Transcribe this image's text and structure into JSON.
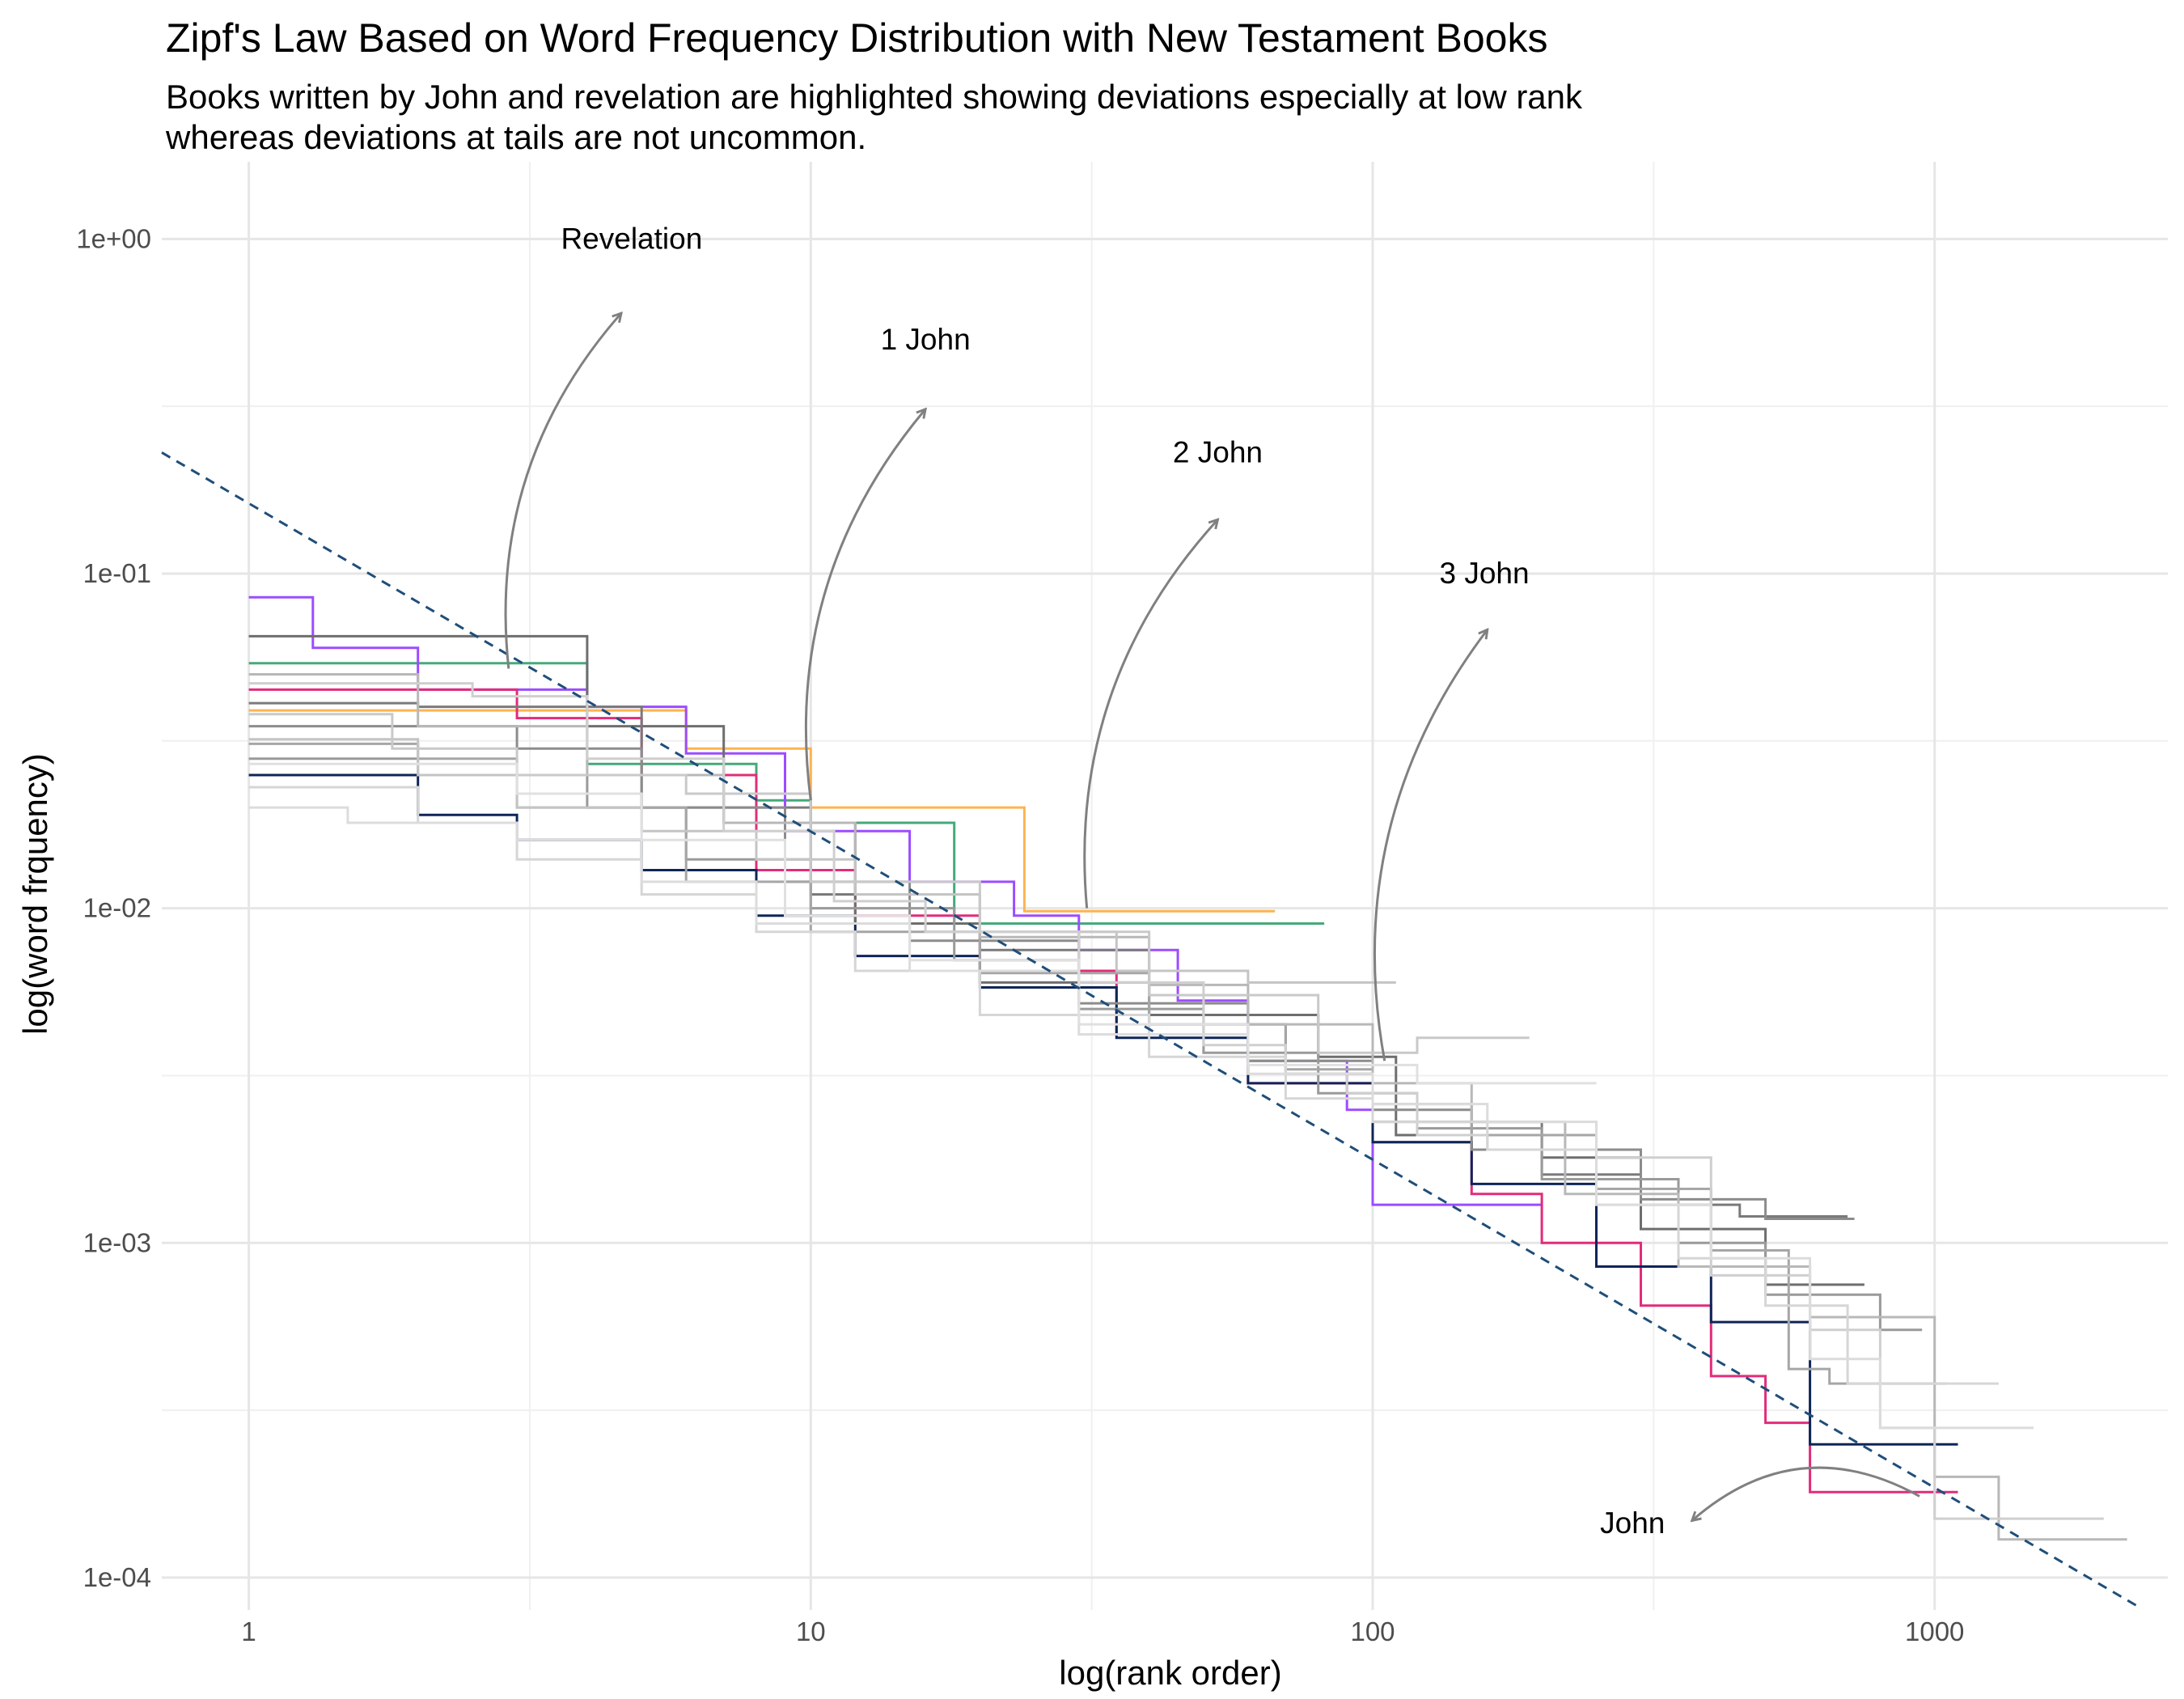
{
  "title": "Zipf's Law Based on Word Frequency Distribution with New Testament Books",
  "subtitle_lines": [
    "Books written by John and revelation are highlighted showing deviations especially at low rank",
    "whereas deviations at tails are not uncommon."
  ],
  "chart_data": {
    "type": "line",
    "title": "Zipf's Law Based on Word Frequency Distribution with New Testament Books",
    "xlabel": "log(rank order)",
    "ylabel": "log(word frquency)",
    "x_scale": "log10",
    "y_scale": "log10",
    "xlim": [
      0.7,
      2600
    ],
    "ylim": [
      8e-05,
      1.7
    ],
    "x_ticks": [
      1,
      10,
      100,
      1000
    ],
    "x_tick_labels": [
      "1",
      "10",
      "100",
      "1000"
    ],
    "y_ticks": [
      0.0001,
      0.001,
      0.01,
      0.1,
      1
    ],
    "y_tick_labels": [
      "1e-04",
      "1e-03",
      "1e-02",
      "1e-01",
      "1e+00"
    ],
    "grid": true,
    "legend": "none",
    "reference_line": {
      "style": "dashed",
      "color": "#1f4e79",
      "points": [
        [
          0.7,
          0.23
        ],
        [
          2300,
          8.2e-05
        ]
      ]
    },
    "series": [
      {
        "color": "#fdb44f",
        "values": [
          [
            1,
            0.039
          ],
          [
            5.5,
            0.039
          ],
          [
            6,
            0.03
          ],
          [
            9.5,
            0.03
          ],
          [
            10,
            0.02
          ],
          [
            23,
            0.02
          ],
          [
            24,
            0.0098
          ],
          [
            67,
            0.0098
          ]
        ]
      },
      {
        "color": "#46a97a",
        "values": [
          [
            1,
            0.054
          ],
          [
            3,
            0.054
          ],
          [
            4,
            0.027
          ],
          [
            7,
            0.027
          ],
          [
            8,
            0.021
          ],
          [
            10,
            0.018
          ],
          [
            17,
            0.018
          ],
          [
            18,
            0.009
          ],
          [
            82,
            0.009
          ]
        ]
      },
      {
        "color": "#9b4dff",
        "values": [
          [
            1,
            0.085
          ],
          [
            1.3,
            0.06
          ],
          [
            2,
            0.045
          ],
          [
            4,
            0.04
          ],
          [
            6,
            0.029
          ],
          [
            9,
            0.017
          ],
          [
            15,
            0.012
          ],
          [
            23,
            0.0095
          ],
          [
            30,
            0.0075
          ],
          [
            45,
            0.0053
          ],
          [
            60,
            0.0035
          ],
          [
            90,
            0.0025
          ],
          [
            100,
            0.0013
          ],
          [
            200,
            0.0013
          ]
        ]
      },
      {
        "color": "#e22c7a",
        "values": [
          [
            1,
            0.045
          ],
          [
            3,
            0.037
          ],
          [
            5,
            0.025
          ],
          [
            8,
            0.013
          ],
          [
            12,
            0.0095
          ],
          [
            20,
            0.0065
          ],
          [
            35,
            0.0042
          ],
          [
            60,
            0.003
          ],
          [
            100,
            0.002
          ],
          [
            150,
            0.0014
          ],
          [
            200,
            0.001
          ],
          [
            300,
            0.00065
          ],
          [
            400,
            0.0004
          ],
          [
            500,
            0.00029
          ],
          [
            600,
            0.00018
          ],
          [
            1100,
            0.00018
          ]
        ]
      },
      {
        "color": "#0f2557",
        "values": [
          [
            1,
            0.025
          ],
          [
            2,
            0.019
          ],
          [
            3,
            0.016
          ],
          [
            5,
            0.013
          ],
          [
            8,
            0.0095
          ],
          [
            12,
            0.0072
          ],
          [
            20,
            0.0058
          ],
          [
            35,
            0.0041
          ],
          [
            60,
            0.003
          ],
          [
            100,
            0.002
          ],
          [
            150,
            0.0015
          ],
          [
            250,
            0.00085
          ],
          [
            400,
            0.00058
          ],
          [
            600,
            0.00025
          ],
          [
            1100,
            0.00025
          ]
        ]
      },
      {
        "color": "#6e6e6e",
        "values": [
          [
            1,
            0.065
          ],
          [
            2.5,
            0.065
          ],
          [
            4,
            0.035
          ],
          [
            7,
            0.018
          ],
          [
            12,
            0.009
          ],
          [
            20,
            0.006
          ],
          [
            40,
            0.0048
          ],
          [
            80,
            0.0036
          ],
          [
            110,
            0.0021
          ],
          [
            200,
            0.0018
          ],
          [
            300,
            0.0011
          ],
          [
            500,
            0.00075
          ],
          [
            750,
            0.00075
          ]
        ]
      },
      {
        "color": "#7a7a7a",
        "values": [
          [
            1,
            0.041
          ],
          [
            2,
            0.04
          ],
          [
            5,
            0.02
          ],
          [
            10,
            0.011
          ],
          [
            20,
            0.0075
          ],
          [
            40,
            0.0045
          ],
          [
            70,
            0.0032
          ],
          [
            100,
            0.0023
          ],
          [
            200,
            0.0016
          ],
          [
            300,
            0.0013
          ],
          [
            450,
            0.0012
          ],
          [
            700,
            0.0012
          ]
        ]
      },
      {
        "color": "#8c8c8c",
        "values": [
          [
            1,
            0.035
          ],
          [
            3,
            0.03
          ],
          [
            5,
            0.02
          ],
          [
            9,
            0.012
          ],
          [
            15,
            0.008
          ],
          [
            30,
            0.0052
          ],
          [
            60,
            0.0035
          ],
          [
            100,
            0.0025
          ],
          [
            150,
            0.0019
          ],
          [
            300,
            0.00135
          ],
          [
            500,
            0.00118
          ],
          [
            720,
            0.00118
          ]
        ]
      },
      {
        "color": "#9a9a9a",
        "values": [
          [
            1,
            0.028
          ],
          [
            2,
            0.025
          ],
          [
            4,
            0.02
          ],
          [
            6,
            0.014
          ],
          [
            10,
            0.01
          ],
          [
            18,
            0.007
          ],
          [
            30,
            0.005
          ],
          [
            50,
            0.0037
          ],
          [
            80,
            0.0028
          ],
          [
            120,
            0.0022
          ],
          [
            200,
            0.00155
          ],
          [
            350,
            0.001
          ],
          [
            500,
            0.0007
          ],
          [
            800,
            0.00055
          ],
          [
            950,
            0.00055
          ]
        ]
      },
      {
        "color": "#a6a6a6",
        "values": [
          [
            1,
            0.031
          ],
          [
            2,
            0.028
          ],
          [
            3,
            0.02
          ],
          [
            6,
            0.012
          ],
          [
            10,
            0.0085
          ],
          [
            20,
            0.0064
          ],
          [
            40,
            0.0045
          ],
          [
            70,
            0.0033
          ],
          [
            100,
            0.0026
          ],
          [
            150,
            0.0021
          ],
          [
            250,
            0.00145
          ],
          [
            400,
            0.00095
          ],
          [
            550,
            0.00042
          ],
          [
            650,
            0.00038
          ],
          [
            1050,
            0.00038
          ]
        ]
      },
      {
        "color": "#b8b8b8",
        "values": [
          [
            1,
            0.05
          ],
          [
            2,
            0.035
          ],
          [
            4,
            0.025
          ],
          [
            7,
            0.018
          ],
          [
            12,
            0.011
          ],
          [
            20,
            0.0082
          ],
          [
            40,
            0.0059
          ],
          [
            60,
            0.0045
          ],
          [
            100,
            0.003
          ],
          [
            150,
            0.0023
          ],
          [
            220,
            0.0014
          ],
          [
            350,
            0.00085
          ],
          [
            600,
            0.0006
          ],
          [
            1000,
            0.0002
          ],
          [
            1300,
            0.00013
          ],
          [
            2200,
            0.00013
          ]
        ]
      },
      {
        "color": "#c4c4c4",
        "values": [
          [
            1,
            0.032
          ],
          [
            2,
            0.025
          ],
          [
            3,
            0.02
          ],
          [
            5,
            0.017
          ],
          [
            8,
            0.014
          ],
          [
            12,
            0.011
          ],
          [
            20,
            0.0085
          ],
          [
            35,
            0.0065
          ],
          [
            60,
            0.006
          ],
          [
            110,
            0.006
          ]
        ]
      },
      {
        "color": "#c9c9c9",
        "values": [
          [
            1,
            0.038
          ],
          [
            1.8,
            0.03
          ],
          [
            3,
            0.025
          ],
          [
            6,
            0.022
          ],
          [
            10,
            0.012
          ],
          [
            20,
            0.0085
          ],
          [
            40,
            0.0055
          ],
          [
            80,
            0.0037
          ],
          [
            120,
            0.0041
          ],
          [
            190,
            0.0041
          ]
        ]
      },
      {
        "color": "#cfcfcf",
        "values": [
          [
            1,
            0.047
          ],
          [
            2.5,
            0.043
          ],
          [
            4,
            0.028
          ],
          [
            7,
            0.017
          ],
          [
            11,
            0.0105
          ],
          [
            16,
            0.0085
          ],
          [
            30,
            0.006
          ],
          [
            50,
            0.0039
          ],
          [
            70,
            0.0032
          ],
          [
            90,
            0.0028
          ],
          [
            120,
            0.0021
          ],
          [
            160,
            0.0019
          ],
          [
            250,
            0.0018
          ],
          [
            400,
            0.0008
          ],
          [
            600,
            0.00055
          ],
          [
            800,
            0.00028
          ],
          [
            1000,
            0.00015
          ],
          [
            2000,
            0.00015
          ]
        ]
      },
      {
        "color": "#d6d6d6",
        "values": [
          [
            1,
            0.023
          ],
          [
            2,
            0.018
          ],
          [
            3,
            0.014
          ],
          [
            5,
            0.011
          ],
          [
            8,
            0.0085
          ],
          [
            12,
            0.0065
          ],
          [
            20,
            0.0048
          ],
          [
            40,
            0.0036
          ],
          [
            70,
            0.0027
          ],
          [
            100,
            0.0023
          ],
          [
            160,
            0.0019
          ],
          [
            250,
            0.0013
          ],
          [
            350,
            0.0009
          ],
          [
            500,
            0.00065
          ],
          [
            700,
            0.00038
          ],
          [
            1300,
            0.00038
          ]
        ]
      },
      {
        "color": "#dcdcdc",
        "values": [
          [
            1,
            0.02
          ],
          [
            1.5,
            0.018
          ],
          [
            3,
            0.016
          ],
          [
            5,
            0.012
          ],
          [
            8,
            0.009
          ],
          [
            15,
            0.0065
          ],
          [
            30,
            0.0042
          ],
          [
            60,
            0.0032
          ],
          [
            100,
            0.0026
          ],
          [
            160,
            0.0023
          ],
          [
            250,
            0.0013
          ],
          [
            400,
            0.0009
          ],
          [
            600,
            0.00045
          ],
          [
            800,
            0.00028
          ],
          [
            1500,
            0.00028
          ]
        ]
      },
      {
        "color": "#e0e0e0",
        "values": [
          [
            1,
            0.027
          ],
          [
            3,
            0.022
          ],
          [
            5,
            0.016
          ],
          [
            9,
            0.0095
          ],
          [
            15,
            0.007
          ],
          [
            30,
            0.0045
          ],
          [
            60,
            0.0034
          ],
          [
            120,
            0.003
          ],
          [
            250,
            0.003
          ]
        ]
      }
    ],
    "annotations": [
      {
        "text": "Revelation",
        "x": 4.8,
        "y": 1.0,
        "arrow_from": [
          2.9,
          0.052
        ],
        "arrow_to": [
          4.6,
          0.6
        ]
      },
      {
        "text": "1 John",
        "x": 16,
        "y": 0.5,
        "arrow_from": [
          10,
          0.021
        ],
        "arrow_to": [
          16,
          0.31
        ]
      },
      {
        "text": "2 John",
        "x": 53,
        "y": 0.23,
        "arrow_from": [
          31,
          0.01
        ],
        "arrow_to": [
          53,
          0.145
        ]
      },
      {
        "text": "3 John",
        "x": 158,
        "y": 0.1,
        "arrow_from": [
          105,
          0.0035
        ],
        "arrow_to": [
          160,
          0.068
        ]
      },
      {
        "text": "John",
        "x": 290,
        "y": 0.000145,
        "arrow_from": [
          940,
          0.000175
        ],
        "arrow_to": [
          370,
          0.000148
        ]
      }
    ]
  }
}
